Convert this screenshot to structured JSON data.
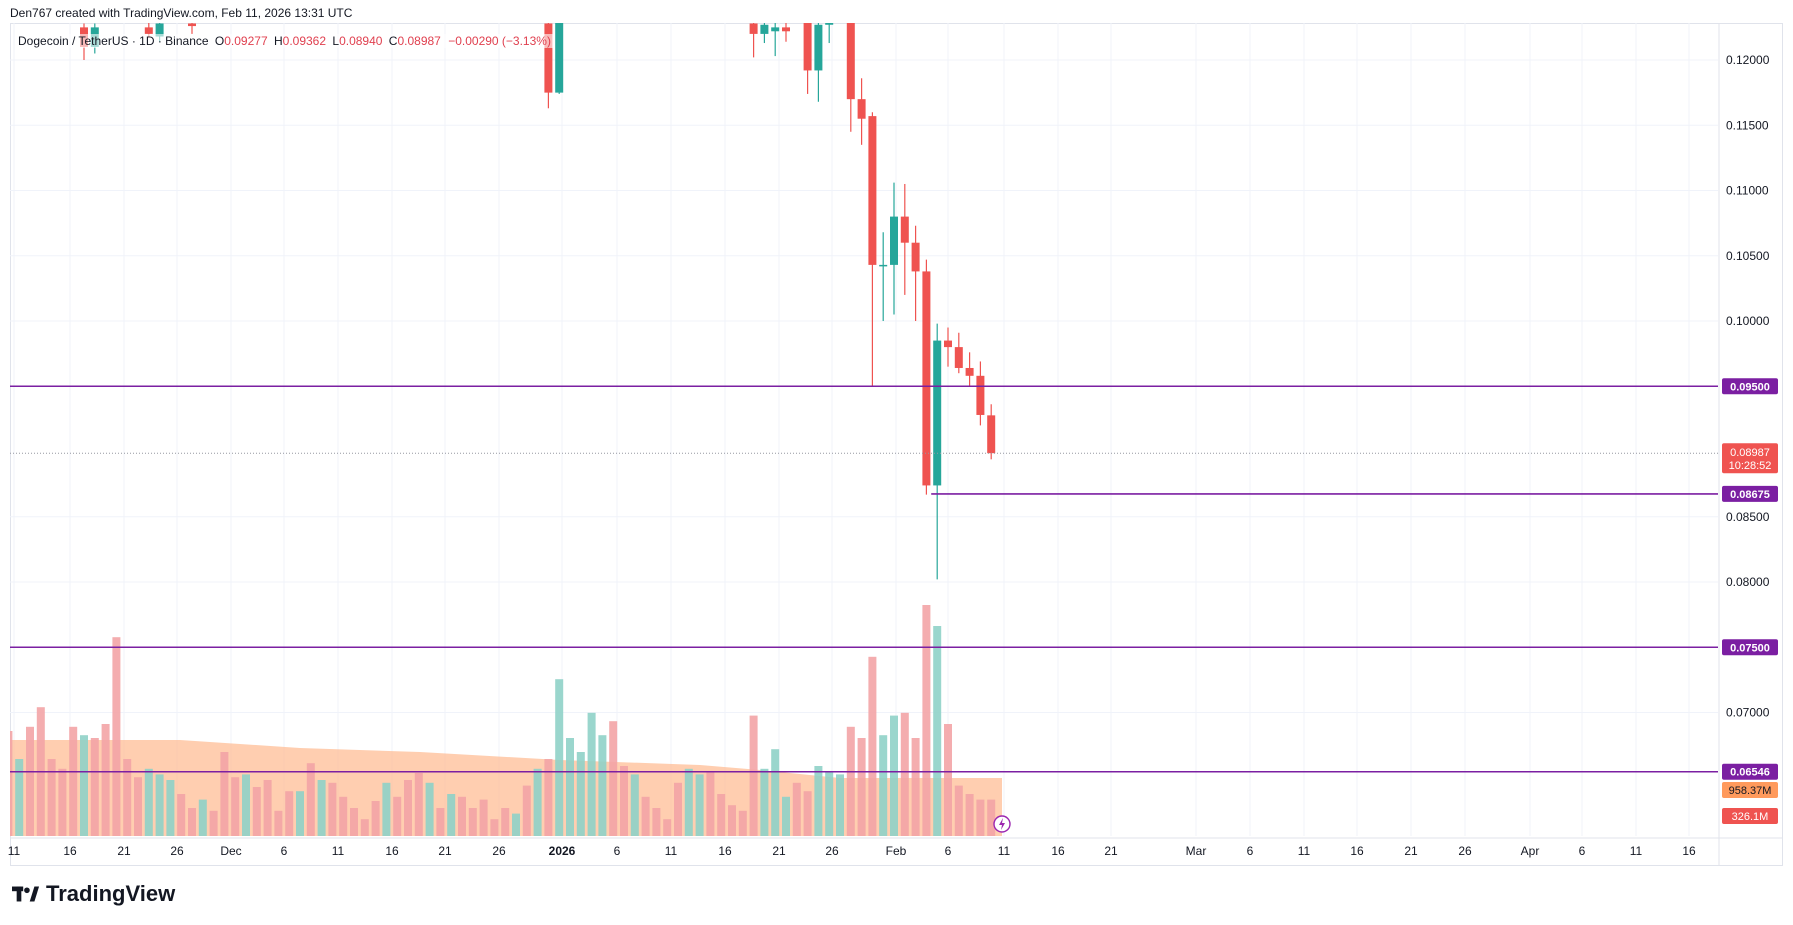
{
  "credit": "Den767 created with TradingView.com, Feb 11, 2026 13:31 UTC",
  "legend": {
    "symbol": "Dogecoin / TetherUS · 1D · Binance",
    "open_label": "O",
    "open": "0.09277",
    "high_label": "H",
    "high": "0.09362",
    "low_label": "L",
    "low": "0.08940",
    "close_label": "C",
    "close": "0.08987",
    "change": "−0.00290 (−3.13%)"
  },
  "brand": {
    "name": "TradingView"
  },
  "colors": {
    "up": "#26a69a",
    "down": "#ef5350",
    "level": "#7b1fa2",
    "vol_up": "#8fd1c8",
    "vol_down": "#f3a4a6",
    "vol_ma": "#ffb98f",
    "grid": "#f0f3fa"
  },
  "chart_data": {
    "type": "candlestick",
    "symbol": "Dogecoin / TetherUS",
    "timeframe": "1D",
    "exchange": "Binance",
    "y_ticks": [
      "0.12000",
      "0.11500",
      "0.11000",
      "0.10500",
      "0.10000",
      "0.08500",
      "0.08000",
      "0.07000"
    ],
    "ylim": [
      0.0612,
      0.1222
    ],
    "x_ticks": [
      "11",
      "16",
      "21",
      "26",
      "Dec",
      "6",
      "11",
      "16",
      "21",
      "26",
      "2026",
      "6",
      "11",
      "16",
      "21",
      "26",
      "Feb",
      "6",
      "11",
      "16",
      "21",
      "Mar",
      "6",
      "11",
      "16",
      "21",
      "26",
      "Apr",
      "6",
      "11",
      "16"
    ],
    "levels": [
      {
        "value": 0.095,
        "label": "0.09500",
        "from": "start"
      },
      {
        "value": 0.08675,
        "label": "0.08675",
        "from": "2026-02-05"
      },
      {
        "value": 0.075,
        "label": "0.07500",
        "from": "start"
      },
      {
        "value": 0.06546,
        "label": "0.06546",
        "from": "start"
      }
    ],
    "last_price": {
      "value": 0.08987,
      "label": "0.08987",
      "countdown": "10:28:52"
    },
    "volume_labels": [
      {
        "label": "958.37M",
        "kind": "ma"
      },
      {
        "label": "326.1M",
        "kind": "current"
      }
    ],
    "candles_visible": [
      {
        "date": "2025-11-18",
        "o": 0.1225,
        "h": 0.1228,
        "l": 0.12,
        "c": 0.121
      },
      {
        "date": "2025-11-19",
        "o": 0.121,
        "h": 0.1228,
        "l": 0.1205,
        "c": 0.1225
      },
      {
        "date": "2025-11-24",
        "o": 0.1225,
        "h": 0.123,
        "l": 0.1217,
        "c": 0.122
      },
      {
        "date": "2025-11-25",
        "o": 0.1218,
        "h": 0.123,
        "l": 0.1214,
        "c": 0.1228
      },
      {
        "date": "2025-11-28",
        "o": 0.1228,
        "h": 0.123,
        "l": 0.122,
        "c": 0.1226
      },
      {
        "date": "2025-12-31",
        "o": 0.1228,
        "h": 0.123,
        "l": 0.1163,
        "c": 0.1175
      },
      {
        "date": "2026-01-01",
        "o": 0.1175,
        "h": 0.123,
        "l": 0.1174,
        "c": 0.123
      },
      {
        "date": "2026-01-19",
        "o": 0.1228,
        "h": 0.123,
        "l": 0.1202,
        "c": 0.122
      },
      {
        "date": "2026-01-20",
        "o": 0.122,
        "h": 0.123,
        "l": 0.1213,
        "c": 0.1227
      },
      {
        "date": "2026-01-21",
        "o": 0.1222,
        "h": 0.123,
        "l": 0.1203,
        "c": 0.1225
      },
      {
        "date": "2026-01-22",
        "o": 0.1225,
        "h": 0.123,
        "l": 0.1214,
        "c": 0.1222
      },
      {
        "date": "2026-01-24",
        "o": 0.123,
        "h": 0.123,
        "l": 0.1174,
        "c": 0.1192
      },
      {
        "date": "2026-01-25",
        "o": 0.1192,
        "h": 0.123,
        "l": 0.1168,
        "c": 0.1227
      },
      {
        "date": "2026-01-26",
        "o": 0.1227,
        "h": 0.123,
        "l": 0.1213,
        "c": 0.123
      },
      {
        "date": "2026-01-28",
        "o": 0.123,
        "h": 0.123,
        "l": 0.1145,
        "c": 0.117
      },
      {
        "date": "2026-01-29",
        "o": 0.117,
        "h": 0.1186,
        "l": 0.1135,
        "c": 0.1155
      },
      {
        "date": "2026-01-30",
        "o": 0.1157,
        "h": 0.116,
        "l": 0.095,
        "c": 0.1043
      },
      {
        "date": "2026-01-31",
        "o": 0.1043,
        "h": 0.1068,
        "l": 0.1,
        "c": 0.1043
      },
      {
        "date": "2026-02-01",
        "o": 0.1043,
        "h": 0.1106,
        "l": 0.1005,
        "c": 0.108
      },
      {
        "date": "2026-02-02",
        "o": 0.108,
        "h": 0.1105,
        "l": 0.102,
        "c": 0.106
      },
      {
        "date": "2026-02-03",
        "o": 0.106,
        "h": 0.1073,
        "l": 0.1,
        "c": 0.1038
      },
      {
        "date": "2026-02-04",
        "o": 0.1038,
        "h": 0.1047,
        "l": 0.0867,
        "c": 0.0874
      },
      {
        "date": "2026-02-05",
        "o": 0.0874,
        "h": 0.0998,
        "l": 0.0802,
        "c": 0.0985
      },
      {
        "date": "2026-02-06",
        "o": 0.0985,
        "h": 0.0995,
        "l": 0.0965,
        "c": 0.098
      },
      {
        "date": "2026-02-07",
        "o": 0.098,
        "h": 0.0991,
        "l": 0.096,
        "c": 0.0964
      },
      {
        "date": "2026-02-08",
        "o": 0.0964,
        "h": 0.0976,
        "l": 0.095,
        "c": 0.0958
      },
      {
        "date": "2026-02-09",
        "o": 0.0958,
        "h": 0.0969,
        "l": 0.092,
        "c": 0.0928
      },
      {
        "date": "2026-02-10",
        "o": 0.09277,
        "h": 0.09362,
        "l": 0.0894,
        "c": 0.08987
      }
    ],
    "volume_bars_relative": [
      {
        "date": "2025-11-11",
        "v": 0.75,
        "dir": "down"
      },
      {
        "date": "2025-11-12",
        "v": 0.55,
        "dir": "up"
      },
      {
        "date": "2025-11-13",
        "v": 0.78,
        "dir": "down"
      },
      {
        "date": "2025-11-14",
        "v": 0.92,
        "dir": "down"
      },
      {
        "date": "2025-11-15",
        "v": 0.55,
        "dir": "down"
      },
      {
        "date": "2025-11-16",
        "v": 0.48,
        "dir": "down"
      },
      {
        "date": "2025-11-17",
        "v": 0.78,
        "dir": "down"
      },
      {
        "date": "2025-11-18",
        "v": 0.72,
        "dir": "up"
      },
      {
        "date": "2025-11-19",
        "v": 0.7,
        "dir": "down"
      },
      {
        "date": "2025-11-20",
        "v": 0.8,
        "dir": "down"
      },
      {
        "date": "2025-11-21",
        "v": 1.42,
        "dir": "down"
      },
      {
        "date": "2025-11-22",
        "v": 0.55,
        "dir": "down"
      },
      {
        "date": "2025-11-23",
        "v": 0.42,
        "dir": "down"
      },
      {
        "date": "2025-11-24",
        "v": 0.48,
        "dir": "up"
      },
      {
        "date": "2025-11-25",
        "v": 0.44,
        "dir": "up"
      },
      {
        "date": "2025-11-26",
        "v": 0.4,
        "dir": "up"
      },
      {
        "date": "2025-11-27",
        "v": 0.3,
        "dir": "down"
      },
      {
        "date": "2025-11-28",
        "v": 0.2,
        "dir": "down"
      },
      {
        "date": "2025-11-29",
        "v": 0.26,
        "dir": "up"
      },
      {
        "date": "2025-11-30",
        "v": 0.18,
        "dir": "down"
      },
      {
        "date": "2025-12-01",
        "v": 0.6,
        "dir": "down"
      },
      {
        "date": "2025-12-02",
        "v": 0.42,
        "dir": "down"
      },
      {
        "date": "2025-12-03",
        "v": 0.44,
        "dir": "up"
      },
      {
        "date": "2025-12-04",
        "v": 0.35,
        "dir": "down"
      },
      {
        "date": "2025-12-05",
        "v": 0.4,
        "dir": "down"
      },
      {
        "date": "2025-12-06",
        "v": 0.18,
        "dir": "down"
      },
      {
        "date": "2025-12-07",
        "v": 0.32,
        "dir": "down"
      },
      {
        "date": "2025-12-08",
        "v": 0.32,
        "dir": "up"
      },
      {
        "date": "2025-12-09",
        "v": 0.52,
        "dir": "down"
      },
      {
        "date": "2025-12-10",
        "v": 0.4,
        "dir": "up"
      },
      {
        "date": "2025-12-11",
        "v": 0.38,
        "dir": "down"
      },
      {
        "date": "2025-12-12",
        "v": 0.28,
        "dir": "down"
      },
      {
        "date": "2025-12-13",
        "v": 0.2,
        "dir": "down"
      },
      {
        "date": "2025-12-14",
        "v": 0.12,
        "dir": "down"
      },
      {
        "date": "2025-12-15",
        "v": 0.25,
        "dir": "down"
      },
      {
        "date": "2025-12-16",
        "v": 0.38,
        "dir": "up"
      },
      {
        "date": "2025-12-17",
        "v": 0.28,
        "dir": "down"
      },
      {
        "date": "2025-12-18",
        "v": 0.4,
        "dir": "down"
      },
      {
        "date": "2025-12-19",
        "v": 0.45,
        "dir": "down"
      },
      {
        "date": "2025-12-20",
        "v": 0.38,
        "dir": "up"
      },
      {
        "date": "2025-12-21",
        "v": 0.2,
        "dir": "down"
      },
      {
        "date": "2025-12-22",
        "v": 0.3,
        "dir": "up"
      },
      {
        "date": "2025-12-23",
        "v": 0.28,
        "dir": "down"
      },
      {
        "date": "2025-12-24",
        "v": 0.2,
        "dir": "down"
      },
      {
        "date": "2025-12-25",
        "v": 0.26,
        "dir": "down"
      },
      {
        "date": "2025-12-26",
        "v": 0.12,
        "dir": "down"
      },
      {
        "date": "2025-12-27",
        "v": 0.2,
        "dir": "down"
      },
      {
        "date": "2025-12-28",
        "v": 0.16,
        "dir": "up"
      },
      {
        "date": "2025-12-29",
        "v": 0.36,
        "dir": "down"
      },
      {
        "date": "2025-12-30",
        "v": 0.48,
        "dir": "up"
      },
      {
        "date": "2025-12-31",
        "v": 0.55,
        "dir": "down"
      },
      {
        "date": "2026-01-01",
        "v": 1.12,
        "dir": "up"
      },
      {
        "date": "2026-01-02",
        "v": 0.7,
        "dir": "up"
      },
      {
        "date": "2026-01-03",
        "v": 0.6,
        "dir": "up"
      },
      {
        "date": "2026-01-04",
        "v": 0.88,
        "dir": "up"
      },
      {
        "date": "2026-01-05",
        "v": 0.72,
        "dir": "up"
      },
      {
        "date": "2026-01-06",
        "v": 0.82,
        "dir": "down"
      },
      {
        "date": "2026-01-07",
        "v": 0.5,
        "dir": "down"
      },
      {
        "date": "2026-01-08",
        "v": 0.44,
        "dir": "up"
      },
      {
        "date": "2026-01-09",
        "v": 0.28,
        "dir": "down"
      },
      {
        "date": "2026-01-10",
        "v": 0.2,
        "dir": "down"
      },
      {
        "date": "2026-01-11",
        "v": 0.12,
        "dir": "down"
      },
      {
        "date": "2026-01-12",
        "v": 0.38,
        "dir": "down"
      },
      {
        "date": "2026-01-13",
        "v": 0.48,
        "dir": "up"
      },
      {
        "date": "2026-01-14",
        "v": 0.44,
        "dir": "up"
      },
      {
        "date": "2026-01-15",
        "v": 0.46,
        "dir": "down"
      },
      {
        "date": "2026-01-16",
        "v": 0.3,
        "dir": "down"
      },
      {
        "date": "2026-01-17",
        "v": 0.22,
        "dir": "down"
      },
      {
        "date": "2026-01-18",
        "v": 0.18,
        "dir": "down"
      },
      {
        "date": "2026-01-19",
        "v": 0.86,
        "dir": "down"
      },
      {
        "date": "2026-01-20",
        "v": 0.48,
        "dir": "up"
      },
      {
        "date": "2026-01-21",
        "v": 0.62,
        "dir": "up"
      },
      {
        "date": "2026-01-22",
        "v": 0.28,
        "dir": "up"
      },
      {
        "date": "2026-01-23",
        "v": 0.38,
        "dir": "down"
      },
      {
        "date": "2026-01-24",
        "v": 0.32,
        "dir": "down"
      },
      {
        "date": "2026-01-25",
        "v": 0.5,
        "dir": "up"
      },
      {
        "date": "2026-01-26",
        "v": 0.46,
        "dir": "up"
      },
      {
        "date": "2026-01-27",
        "v": 0.44,
        "dir": "up"
      },
      {
        "date": "2026-01-28",
        "v": 0.78,
        "dir": "down"
      },
      {
        "date": "2026-01-29",
        "v": 0.7,
        "dir": "down"
      },
      {
        "date": "2026-01-30",
        "v": 1.28,
        "dir": "down"
      },
      {
        "date": "2026-01-31",
        "v": 0.72,
        "dir": "up"
      },
      {
        "date": "2026-02-01",
        "v": 0.86,
        "dir": "up"
      },
      {
        "date": "2026-02-02",
        "v": 0.88,
        "dir": "down"
      },
      {
        "date": "2026-02-03",
        "v": 0.7,
        "dir": "down"
      },
      {
        "date": "2026-02-04",
        "v": 1.65,
        "dir": "down"
      },
      {
        "date": "2026-02-05",
        "v": 1.5,
        "dir": "up"
      },
      {
        "date": "2026-02-06",
        "v": 0.8,
        "dir": "down"
      },
      {
        "date": "2026-02-07",
        "v": 0.36,
        "dir": "down"
      },
      {
        "date": "2026-02-08",
        "v": 0.3,
        "dir": "down"
      },
      {
        "date": "2026-02-09",
        "v": 0.26,
        "dir": "down"
      },
      {
        "date": "2026-02-10",
        "v": 0.26,
        "dir": "down"
      }
    ]
  }
}
